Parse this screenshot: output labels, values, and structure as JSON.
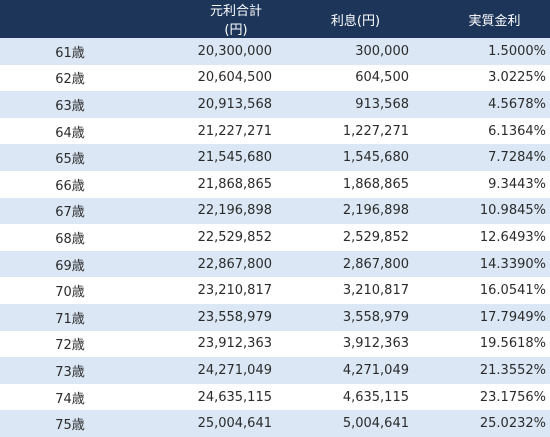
{
  "table": {
    "headers": {
      "age": "",
      "total": "元利合計(円)",
      "interest": "利息(円)",
      "rate": "実質金利"
    },
    "rows": [
      {
        "age": "61歳",
        "total": "20,300,000",
        "interest": "300,000",
        "rate": "1.5000%"
      },
      {
        "age": "62歳",
        "total": "20,604,500",
        "interest": "604,500",
        "rate": "3.0225%"
      },
      {
        "age": "63歳",
        "total": "20,913,568",
        "interest": "913,568",
        "rate": "4.5678%"
      },
      {
        "age": "64歳",
        "total": "21,227,271",
        "interest": "1,227,271",
        "rate": "6.1364%"
      },
      {
        "age": "65歳",
        "total": "21,545,680",
        "interest": "1,545,680",
        "rate": "7.7284%"
      },
      {
        "age": "66歳",
        "total": "21,868,865",
        "interest": "1,868,865",
        "rate": "9.3443%"
      },
      {
        "age": "67歳",
        "total": "22,196,898",
        "interest": "2,196,898",
        "rate": "10.9845%"
      },
      {
        "age": "68歳",
        "total": "22,529,852",
        "interest": "2,529,852",
        "rate": "12.6493%"
      },
      {
        "age": "69歳",
        "total": "22,867,800",
        "interest": "2,867,800",
        "rate": "14.3390%"
      },
      {
        "age": "70歳",
        "total": "23,210,817",
        "interest": "3,210,817",
        "rate": "16.0541%"
      },
      {
        "age": "71歳",
        "total": "23,558,979",
        "interest": "3,558,979",
        "rate": "17.7949%"
      },
      {
        "age": "72歳",
        "total": "23,912,363",
        "interest": "3,912,363",
        "rate": "19.5618%"
      },
      {
        "age": "73歳",
        "total": "24,271,049",
        "interest": "4,271,049",
        "rate": "21.3552%"
      },
      {
        "age": "74歳",
        "total": "24,635,115",
        "interest": "4,635,115",
        "rate": "23.1756%"
      },
      {
        "age": "75歳",
        "total": "25,004,641",
        "interest": "5,004,641",
        "rate": "25.0232%"
      }
    ]
  },
  "colors": {
    "header_background": "#1c3559",
    "header_text": "#ffffff",
    "stripe_row": "#dbe7f4",
    "plain_row": "#ffffff",
    "body_text": "#2b2b2b"
  }
}
